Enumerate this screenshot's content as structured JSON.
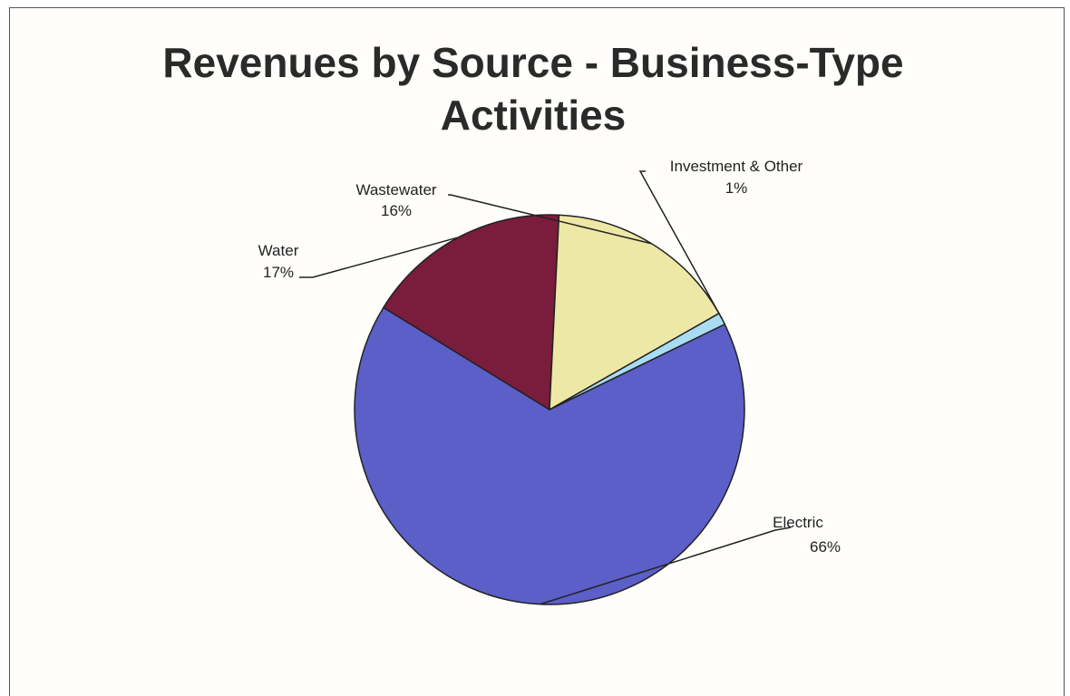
{
  "chart_data": {
    "type": "pie",
    "title_lines": [
      "Revenues by Source - Business-Type",
      "Activities"
    ],
    "slices": [
      {
        "name": "Electric",
        "value": 66,
        "label": "66%",
        "color": "#5b5fc7"
      },
      {
        "name": "Water",
        "value": 17,
        "label": "17%",
        "color": "#7a1c3c"
      },
      {
        "name": "Wastewater",
        "value": 16,
        "label": "16%",
        "color": "#eee8a6"
      },
      {
        "name": "Investment & Other",
        "value": 1,
        "label": "1%",
        "color": "#a9dcf2"
      }
    ]
  }
}
